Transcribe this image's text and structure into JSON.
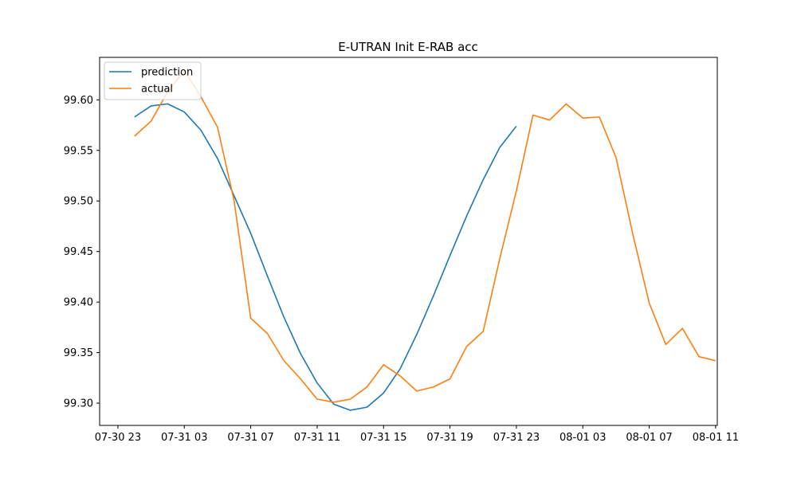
{
  "chart_data": {
    "type": "line",
    "title": "E-UTRAN Init E-RAB acc",
    "xlabel": "",
    "ylabel": "",
    "x_start": "07-30 23",
    "x_step_hours": 1,
    "xlim_hours": [
      -1.1,
      36.1
    ],
    "ylim": [
      99.278,
      99.642
    ],
    "x_ticks": [
      {
        "hour": 0,
        "label": "07-30 23"
      },
      {
        "hour": 4,
        "label": "07-31 03"
      },
      {
        "hour": 8,
        "label": "07-31 07"
      },
      {
        "hour": 12,
        "label": "07-31 11"
      },
      {
        "hour": 16,
        "label": "07-31 15"
      },
      {
        "hour": 20,
        "label": "07-31 19"
      },
      {
        "hour": 24,
        "label": "07-31 23"
      },
      {
        "hour": 28,
        "label": "08-01 03"
      },
      {
        "hour": 32,
        "label": "08-01 07"
      },
      {
        "hour": 36,
        "label": "08-01 11"
      }
    ],
    "y_ticks": [
      {
        "value": 99.3,
        "label": "99.30"
      },
      {
        "value": 99.35,
        "label": "99.35"
      },
      {
        "value": 99.4,
        "label": "99.40"
      },
      {
        "value": 99.45,
        "label": "99.45"
      },
      {
        "value": 99.5,
        "label": "99.50"
      },
      {
        "value": 99.55,
        "label": "99.55"
      },
      {
        "value": 99.6,
        "label": "99.60"
      }
    ],
    "grid": false,
    "legend_position": "top-left",
    "series": [
      {
        "name": "prediction",
        "color": "#1f77b4",
        "x_offset": 1,
        "values": [
          99.583,
          99.594,
          99.596,
          99.588,
          99.57,
          99.542,
          99.505,
          99.468,
          99.426,
          99.385,
          99.349,
          99.32,
          99.299,
          99.293,
          99.296,
          99.31,
          99.334,
          99.368,
          99.406,
          99.446,
          99.485,
          99.521,
          99.553,
          99.574
        ]
      },
      {
        "name": "actual",
        "color": "#ff7f0e",
        "x_offset": 1,
        "values": [
          99.564,
          99.579,
          99.608,
          99.629,
          99.603,
          99.573,
          99.5,
          99.384,
          99.369,
          99.342,
          99.324,
          99.304,
          99.301,
          99.304,
          99.316,
          99.338,
          99.327,
          99.312,
          99.316,
          99.324,
          99.356,
          99.371,
          99.443,
          99.51,
          99.585,
          99.58,
          99.596,
          99.582,
          99.583,
          99.543,
          99.468,
          99.399,
          99.358,
          99.374,
          99.346,
          99.342
        ]
      }
    ]
  }
}
